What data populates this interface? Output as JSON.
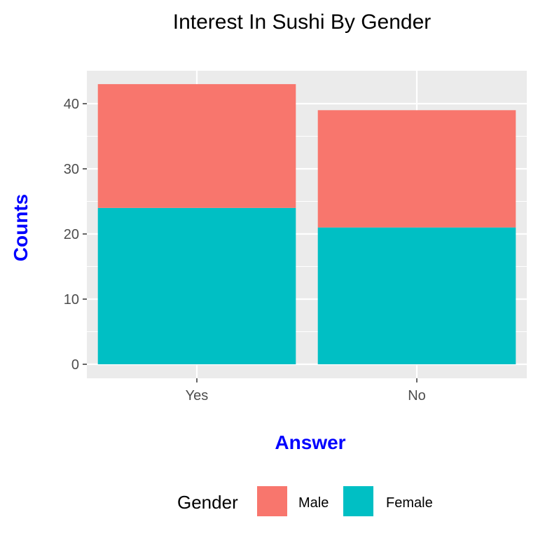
{
  "chart_data": {
    "type": "bar",
    "stacked": true,
    "title": "Interest In Sushi By Gender",
    "xlabel": "Answer",
    "ylabel": "Counts",
    "categories": [
      "Yes",
      "No"
    ],
    "series": [
      {
        "name": "Female",
        "values": [
          24,
          21
        ],
        "color": "#00BFC4"
      },
      {
        "name": "Male",
        "values": [
          19,
          18
        ],
        "color": "#F8766D"
      }
    ],
    "ylim": [
      0,
      45
    ],
    "yticks": [
      0,
      10,
      20,
      30,
      40
    ],
    "grid": true,
    "legend": {
      "title": "Gender",
      "position": "bottom",
      "order": [
        "Male",
        "Female"
      ]
    },
    "colors": {
      "panel": "#EBEBEB",
      "grid": "#FFFFFF",
      "axis_title": "#0000FF",
      "tick_text": "#4D4D4D"
    }
  }
}
